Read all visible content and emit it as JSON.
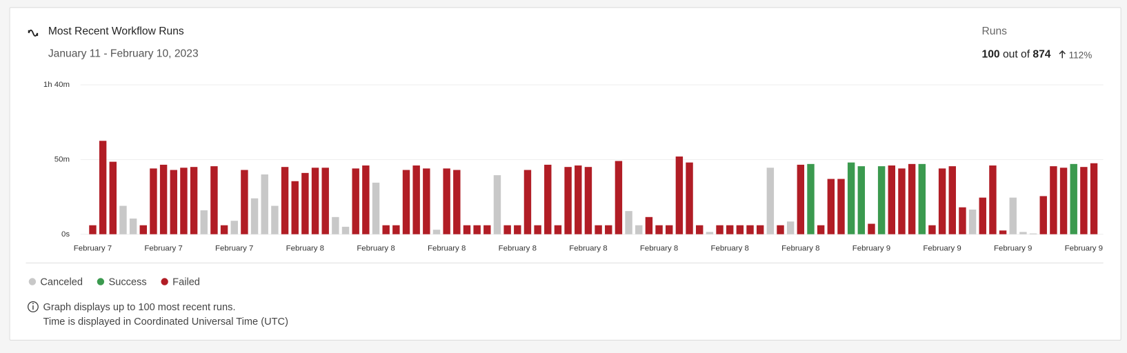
{
  "header": {
    "title": "Most Recent Workflow Runs",
    "subtitle": "January 11 - February 10, 2023"
  },
  "summary": {
    "label": "Runs",
    "count": 100,
    "out_of": "out of",
    "total": 874,
    "change": "112%"
  },
  "chart_data": {
    "type": "bar",
    "grid": true,
    "legend": "bottom-left",
    "ylim": [
      0,
      100
    ],
    "yticks": [
      {
        "value": 0,
        "label": "0s"
      },
      {
        "value": 50,
        "label": "50m"
      },
      {
        "value": 100,
        "label": "1h 40m"
      }
    ],
    "categories": [
      "February 7",
      null,
      null,
      null,
      null,
      null,
      null,
      "February 7",
      null,
      null,
      null,
      null,
      null,
      null,
      "February 7",
      null,
      null,
      null,
      null,
      null,
      null,
      "February 8",
      null,
      null,
      null,
      null,
      null,
      null,
      "February 8",
      null,
      null,
      null,
      null,
      null,
      null,
      "February 8",
      null,
      null,
      null,
      null,
      null,
      null,
      "February 8",
      null,
      null,
      null,
      null,
      null,
      null,
      "February 8",
      null,
      null,
      null,
      null,
      null,
      null,
      "February 8",
      null,
      null,
      null,
      null,
      null,
      null,
      "February 8",
      null,
      null,
      null,
      null,
      null,
      null,
      "February 8",
      null,
      null,
      null,
      null,
      null,
      null,
      "February 9",
      null,
      null,
      null,
      null,
      null,
      null,
      "February 9",
      null,
      null,
      null,
      null,
      null,
      null,
      "February 9",
      null,
      null,
      null,
      null,
      null,
      null,
      "February 9",
      null
    ],
    "series": [
      {
        "name": "Canceled",
        "color": "#c8c8c8",
        "values": [
          null,
          null,
          null,
          19,
          10.5,
          null,
          null,
          null,
          null,
          null,
          null,
          16,
          null,
          null,
          9,
          null,
          24,
          40,
          19,
          null,
          null,
          null,
          null,
          null,
          11.5,
          5,
          null,
          null,
          34.5,
          null,
          null,
          null,
          null,
          null,
          3,
          null,
          null,
          null,
          null,
          null,
          39.5,
          null,
          null,
          null,
          null,
          null,
          null,
          null,
          null,
          null,
          null,
          null,
          null,
          15.5,
          6,
          null,
          null,
          null,
          null,
          null,
          null,
          1.5,
          null,
          null,
          null,
          null,
          null,
          44.5,
          null,
          8.5,
          null,
          null,
          null,
          null,
          null,
          null,
          null,
          null,
          null,
          null,
          null,
          null,
          null,
          null,
          null,
          null,
          null,
          16.5,
          null,
          null,
          null,
          24.5,
          1.5,
          0.5,
          null,
          null,
          null,
          null,
          null,
          null
        ]
      },
      {
        "name": "Success",
        "color": "#3b9a4f",
        "values": [
          null,
          null,
          null,
          null,
          null,
          null,
          null,
          null,
          null,
          null,
          null,
          null,
          null,
          null,
          null,
          null,
          null,
          null,
          null,
          null,
          null,
          null,
          null,
          null,
          null,
          null,
          null,
          null,
          null,
          null,
          null,
          null,
          null,
          null,
          null,
          null,
          null,
          null,
          null,
          null,
          null,
          null,
          null,
          null,
          null,
          null,
          null,
          null,
          null,
          null,
          null,
          null,
          null,
          null,
          null,
          null,
          null,
          null,
          null,
          null,
          null,
          null,
          null,
          null,
          null,
          null,
          null,
          null,
          null,
          null,
          null,
          47,
          null,
          null,
          null,
          48,
          45.5,
          null,
          45.5,
          null,
          null,
          null,
          47,
          null,
          null,
          null,
          null,
          null,
          null,
          null,
          null,
          null,
          null,
          null,
          null,
          null,
          null,
          47,
          null,
          null
        ]
      },
      {
        "name": "Failed",
        "color": "#b11d25",
        "values": [
          6,
          62.5,
          48.5,
          null,
          null,
          6,
          44,
          46.5,
          43,
          44.5,
          45,
          null,
          45.5,
          6,
          null,
          43,
          null,
          null,
          null,
          45,
          35.5,
          41,
          44.5,
          44.5,
          null,
          null,
          44,
          46,
          null,
          6,
          6,
          43,
          46,
          44,
          null,
          44,
          43,
          6,
          6,
          6,
          null,
          6,
          6,
          43,
          6,
          46.5,
          6,
          45,
          46,
          45,
          6,
          6,
          49,
          null,
          null,
          11.5,
          6,
          6,
          52,
          48,
          6,
          null,
          6,
          6,
          6,
          6,
          6,
          null,
          6,
          null,
          46.5,
          null,
          6,
          37,
          37,
          null,
          null,
          7,
          null,
          46,
          44,
          47,
          null,
          6,
          44,
          45.5,
          18,
          null,
          24.5,
          46,
          2.5,
          null,
          null,
          null,
          25.5,
          45.5,
          44.5,
          null,
          45,
          47.5
        ]
      }
    ]
  },
  "footnote": [
    "Graph displays up to 100 most recent runs.",
    "Time is displayed in Coordinated Universal Time (UTC)"
  ]
}
